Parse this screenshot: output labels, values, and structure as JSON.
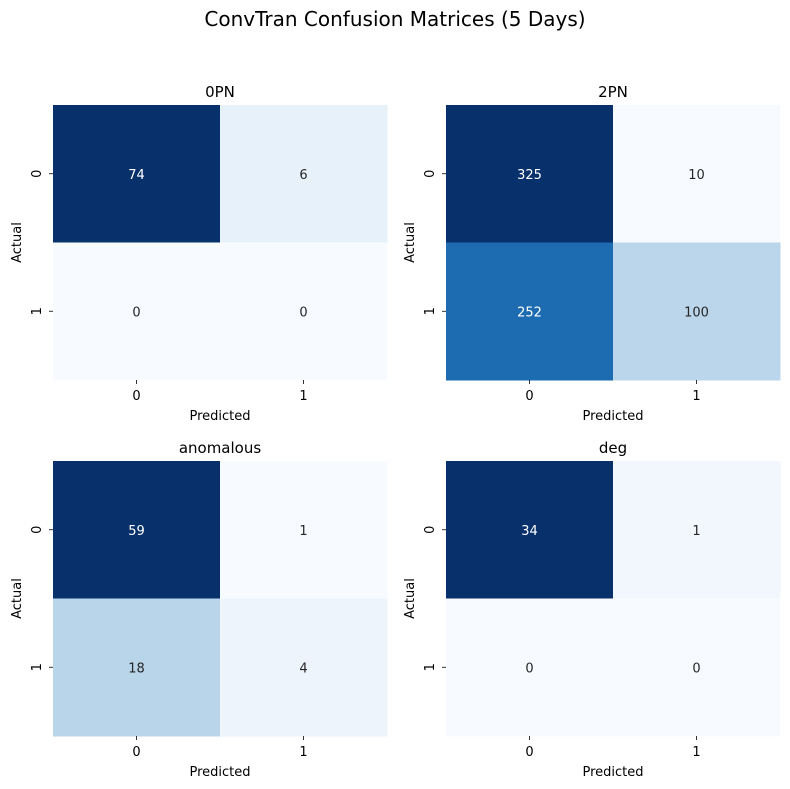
{
  "title": "ConvTran Confusion Matrices (5 Days)",
  "colormap": {
    "low": "#f7fbff",
    "high": "#08306b"
  },
  "chart_data": [
    {
      "type": "heatmap",
      "title": "0PN",
      "xlabel": "Predicted",
      "ylabel": "Actual",
      "x_ticks": [
        "0",
        "1"
      ],
      "y_ticks": [
        "0",
        "1"
      ],
      "matrix": [
        [
          74,
          6
        ],
        [
          0,
          0
        ]
      ]
    },
    {
      "type": "heatmap",
      "title": "2PN",
      "xlabel": "Predicted",
      "ylabel": "Actual",
      "x_ticks": [
        "0",
        "1"
      ],
      "y_ticks": [
        "0",
        "1"
      ],
      "matrix": [
        [
          325,
          10
        ],
        [
          252,
          100
        ]
      ]
    },
    {
      "type": "heatmap",
      "title": "anomalous",
      "xlabel": "Predicted",
      "ylabel": "Actual",
      "x_ticks": [
        "0",
        "1"
      ],
      "y_ticks": [
        "0",
        "1"
      ],
      "matrix": [
        [
          59,
          1
        ],
        [
          18,
          4
        ]
      ]
    },
    {
      "type": "heatmap",
      "title": "deg",
      "xlabel": "Predicted",
      "ylabel": "Actual",
      "x_ticks": [
        "0",
        "1"
      ],
      "y_ticks": [
        "0",
        "1"
      ],
      "matrix": [
        [
          34,
          1
        ],
        [
          0,
          0
        ]
      ]
    }
  ]
}
